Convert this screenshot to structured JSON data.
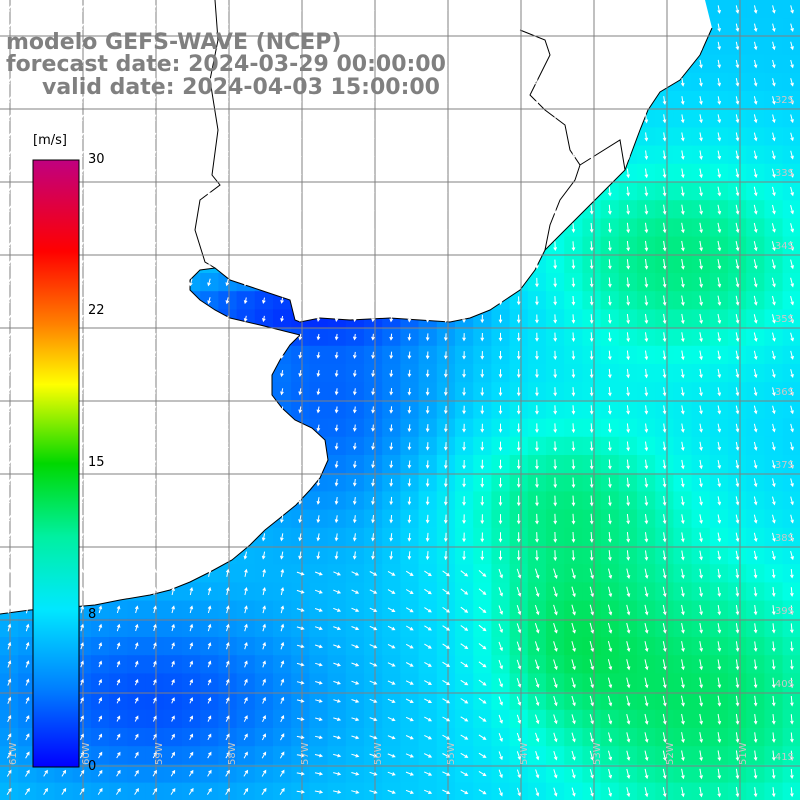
{
  "title": {
    "line1": "modelo GEFS-WAVE (NCEP)",
    "line2": "forecast date: 2024-03-29 00:00:00",
    "line3": "valid date: 2024-04-03 15:00:00"
  },
  "colorbar": {
    "unit": "[m/s]",
    "ticks": [
      "30",
      "22",
      "15",
      "8",
      "0"
    ],
    "values": [
      30,
      22,
      15,
      8,
      0
    ],
    "range": [
      0,
      30
    ],
    "colors": [
      "#0000ff",
      "#00c8ff",
      "#00ffff",
      "#00e000",
      "#ffff00",
      "#ff8000",
      "#ff0000",
      "#c00080"
    ]
  },
  "map": {
    "region": "South Atlantic / Rio de la Plata",
    "land_color": "#ffffff",
    "grid_color": "#808080",
    "coast_color": "#000000",
    "arrow_color": "#ffffff",
    "lat_labels": [
      "32S",
      "33S",
      "34S",
      "35S",
      "36S",
      "37S",
      "38S",
      "39S",
      "40S",
      "41S"
    ],
    "lon_labels": [
      "61W",
      "60W",
      "59W",
      "58W",
      "57W",
      "56W",
      "55W",
      "54W",
      "53W",
      "52W",
      "51W"
    ]
  }
}
